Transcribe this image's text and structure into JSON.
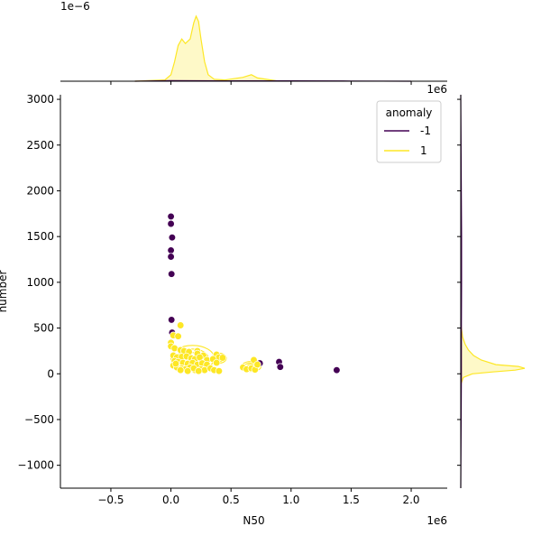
{
  "chart_data": {
    "type": "scatter",
    "variant": "jointplot-with-kde",
    "xlabel": "N50",
    "ylabel": "number",
    "x_offset_label": "1e6",
    "y_offset_label": "1e6",
    "top_marginal_offset_label": "1e−6",
    "xlim": [
      -0.92,
      2.3
    ],
    "ylim": [
      -1250,
      3050
    ],
    "x_ticks": [
      {
        "value": -0.5,
        "label": "−0.5"
      },
      {
        "value": 0.0,
        "label": "0.0"
      },
      {
        "value": 0.5,
        "label": "0.5"
      },
      {
        "value": 1.0,
        "label": "1.0"
      },
      {
        "value": 1.5,
        "label": "1.5"
      },
      {
        "value": 2.0,
        "label": "2.0"
      }
    ],
    "y_ticks": [
      {
        "value": -1000,
        "label": "−1000"
      },
      {
        "value": -500,
        "label": "−500"
      },
      {
        "value": 0,
        "label": "0"
      },
      {
        "value": 500,
        "label": "500"
      },
      {
        "value": 1000,
        "label": "1000"
      },
      {
        "value": 1500,
        "label": "1500"
      },
      {
        "value": 2000,
        "label": "2000"
      },
      {
        "value": 2500,
        "label": "2500"
      },
      {
        "value": 3000,
        "label": "3000"
      }
    ],
    "legend": {
      "title": "anomaly",
      "placement": "top-right",
      "entries": [
        {
          "label": "-1",
          "color": "#440154"
        },
        {
          "label": "1",
          "color": "#fde725"
        }
      ]
    },
    "series": [
      {
        "name": "-1",
        "color": "#440154",
        "points": [
          [
            0.0,
            1720
          ],
          [
            0.0,
            1640
          ],
          [
            0.01,
            1490
          ],
          [
            0.0,
            1350
          ],
          [
            0.0,
            1280
          ],
          [
            0.005,
            1090
          ],
          [
            0.005,
            590
          ],
          [
            0.01,
            450
          ],
          [
            0.74,
            115
          ],
          [
            0.9,
            130
          ],
          [
            0.91,
            75
          ],
          [
            1.38,
            40
          ]
        ]
      },
      {
        "name": "1",
        "color": "#fde725",
        "points": [
          [
            0.08,
            530
          ],
          [
            0.02,
            420
          ],
          [
            0.06,
            410
          ],
          [
            0.0,
            340
          ],
          [
            0.0,
            300
          ],
          [
            0.03,
            280
          ],
          [
            0.08,
            260
          ],
          [
            0.11,
            250
          ],
          [
            0.15,
            240
          ],
          [
            0.22,
            250
          ],
          [
            0.22,
            220
          ],
          [
            0.27,
            200
          ],
          [
            0.38,
            210
          ],
          [
            0.4,
            180
          ],
          [
            0.43,
            175
          ],
          [
            0.02,
            200
          ],
          [
            0.05,
            180
          ],
          [
            0.09,
            185
          ],
          [
            0.13,
            190
          ],
          [
            0.17,
            170
          ],
          [
            0.2,
            160
          ],
          [
            0.24,
            180
          ],
          [
            0.3,
            150
          ],
          [
            0.35,
            160
          ],
          [
            0.03,
            140
          ],
          [
            0.06,
            130
          ],
          [
            0.1,
            120
          ],
          [
            0.14,
            110
          ],
          [
            0.18,
            120
          ],
          [
            0.22,
            100
          ],
          [
            0.26,
            115
          ],
          [
            0.3,
            100
          ],
          [
            0.38,
            120
          ],
          [
            0.02,
            90
          ],
          [
            0.05,
            70
          ],
          [
            0.09,
            60
          ],
          [
            0.12,
            50
          ],
          [
            0.16,
            70
          ],
          [
            0.2,
            40
          ],
          [
            0.25,
            50
          ],
          [
            0.28,
            40
          ],
          [
            0.33,
            60
          ],
          [
            0.36,
            40
          ],
          [
            0.4,
            30
          ],
          [
            0.08,
            40
          ],
          [
            0.14,
            30
          ],
          [
            0.19,
            60
          ],
          [
            0.23,
            30
          ],
          [
            0.6,
            70
          ],
          [
            0.63,
            50
          ],
          [
            0.67,
            60
          ],
          [
            0.7,
            45
          ],
          [
            0.69,
            150
          ],
          [
            0.72,
            100
          ],
          [
            0.04,
            110
          ]
        ]
      }
    ],
    "marginal_x": {
      "label_offset": "1e−6",
      "series": [
        {
          "name": "1",
          "x": [
            -0.3,
            -0.05,
            0.0,
            0.03,
            0.06,
            0.09,
            0.12,
            0.16,
            0.19,
            0.21,
            0.23,
            0.25,
            0.28,
            0.31,
            0.36,
            0.45,
            0.6,
            0.67,
            0.72,
            0.9
          ],
          "density": [
            0.0,
            0.02,
            0.1,
            0.3,
            0.55,
            0.65,
            0.58,
            0.65,
            0.9,
            1.0,
            0.92,
            0.65,
            0.3,
            0.1,
            0.03,
            0.02,
            0.06,
            0.1,
            0.05,
            0.0
          ]
        },
        {
          "name": "-1",
          "x": [
            -0.3,
            0.0,
            0.5,
            1.0,
            1.5,
            2.0
          ],
          "density": [
            0.0,
            0.01,
            0.005,
            0.005,
            0.003,
            0.0
          ]
        }
      ]
    },
    "marginal_y": {
      "series": [
        {
          "name": "1",
          "y": [
            -120,
            -40,
            0,
            20,
            40,
            60,
            80,
            100,
            150,
            200,
            260,
            320,
            400,
            500,
            600
          ],
          "density": [
            0.0,
            0.04,
            0.18,
            0.5,
            0.85,
            1.0,
            0.9,
            0.55,
            0.32,
            0.2,
            0.12,
            0.07,
            0.03,
            0.01,
            0.0
          ]
        },
        {
          "name": "-1",
          "y": [
            -1250,
            0,
            500,
            1000,
            1500,
            2000,
            3050
          ],
          "density": [
            0.0,
            0.01,
            0.01,
            0.012,
            0.012,
            0.008,
            0.0
          ]
        }
      ]
    },
    "kde_contours": {
      "series": "1",
      "regions": [
        {
          "center": [
            0.18,
            170
          ],
          "radii": [
            0.18,
            140
          ]
        },
        {
          "center": [
            0.4,
            170
          ],
          "radii": [
            0.06,
            55
          ]
        },
        {
          "center": [
            0.67,
            80
          ],
          "radii": [
            0.08,
            55
          ]
        }
      ]
    }
  }
}
